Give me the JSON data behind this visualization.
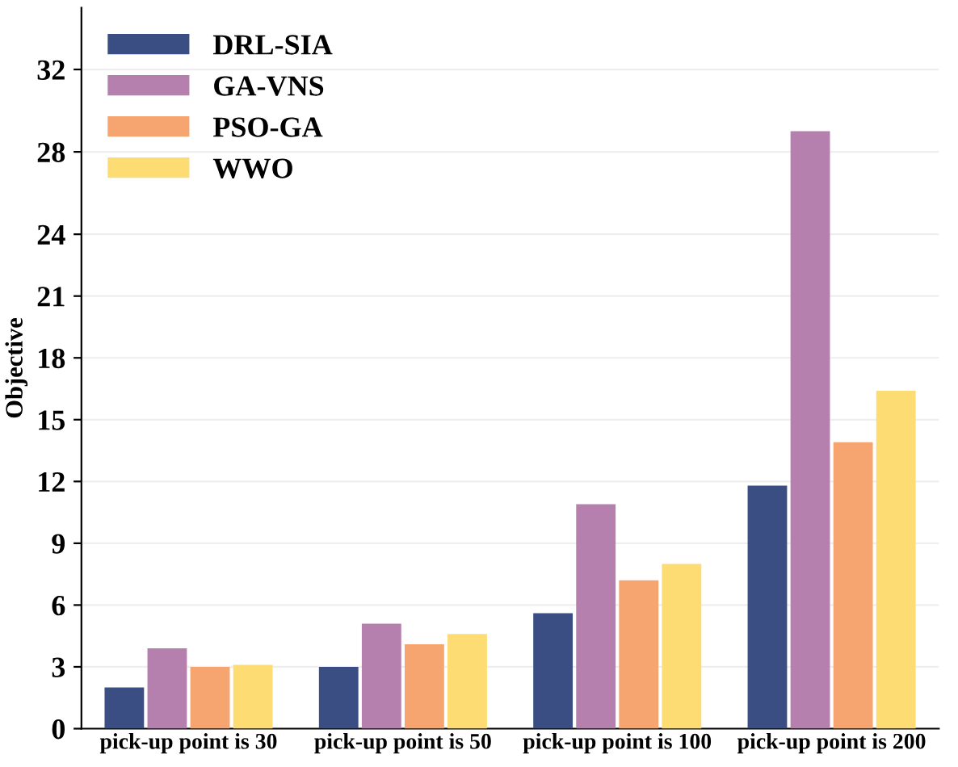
{
  "chart_data": {
    "type": "bar",
    "ylabel": "Objective",
    "categories": [
      "pick-up point is 30",
      "pick-up point is 50",
      "pick-up point is 100",
      "pick-up point is 200"
    ],
    "series": [
      {
        "name": "DRL-SIA",
        "color": "#3b4e84",
        "values": [
          2.0,
          3.0,
          5.6,
          11.8
        ]
      },
      {
        "name": "GA-VNS",
        "color": "#b57fae",
        "values": [
          3.9,
          5.1,
          10.9,
          29.0
        ]
      },
      {
        "name": "PSO-GA",
        "color": "#f6a470",
        "values": [
          3.0,
          4.1,
          7.2,
          13.9
        ]
      },
      {
        "name": "WWO",
        "color": "#fddc73",
        "values": [
          3.1,
          4.6,
          8.0,
          16.4
        ]
      }
    ],
    "ylim": [
      0,
      35
    ],
    "yticks": [
      0,
      3,
      6,
      9,
      12,
      15,
      18,
      21,
      24,
      28,
      32
    ],
    "grid": "y",
    "legend": "top left"
  }
}
